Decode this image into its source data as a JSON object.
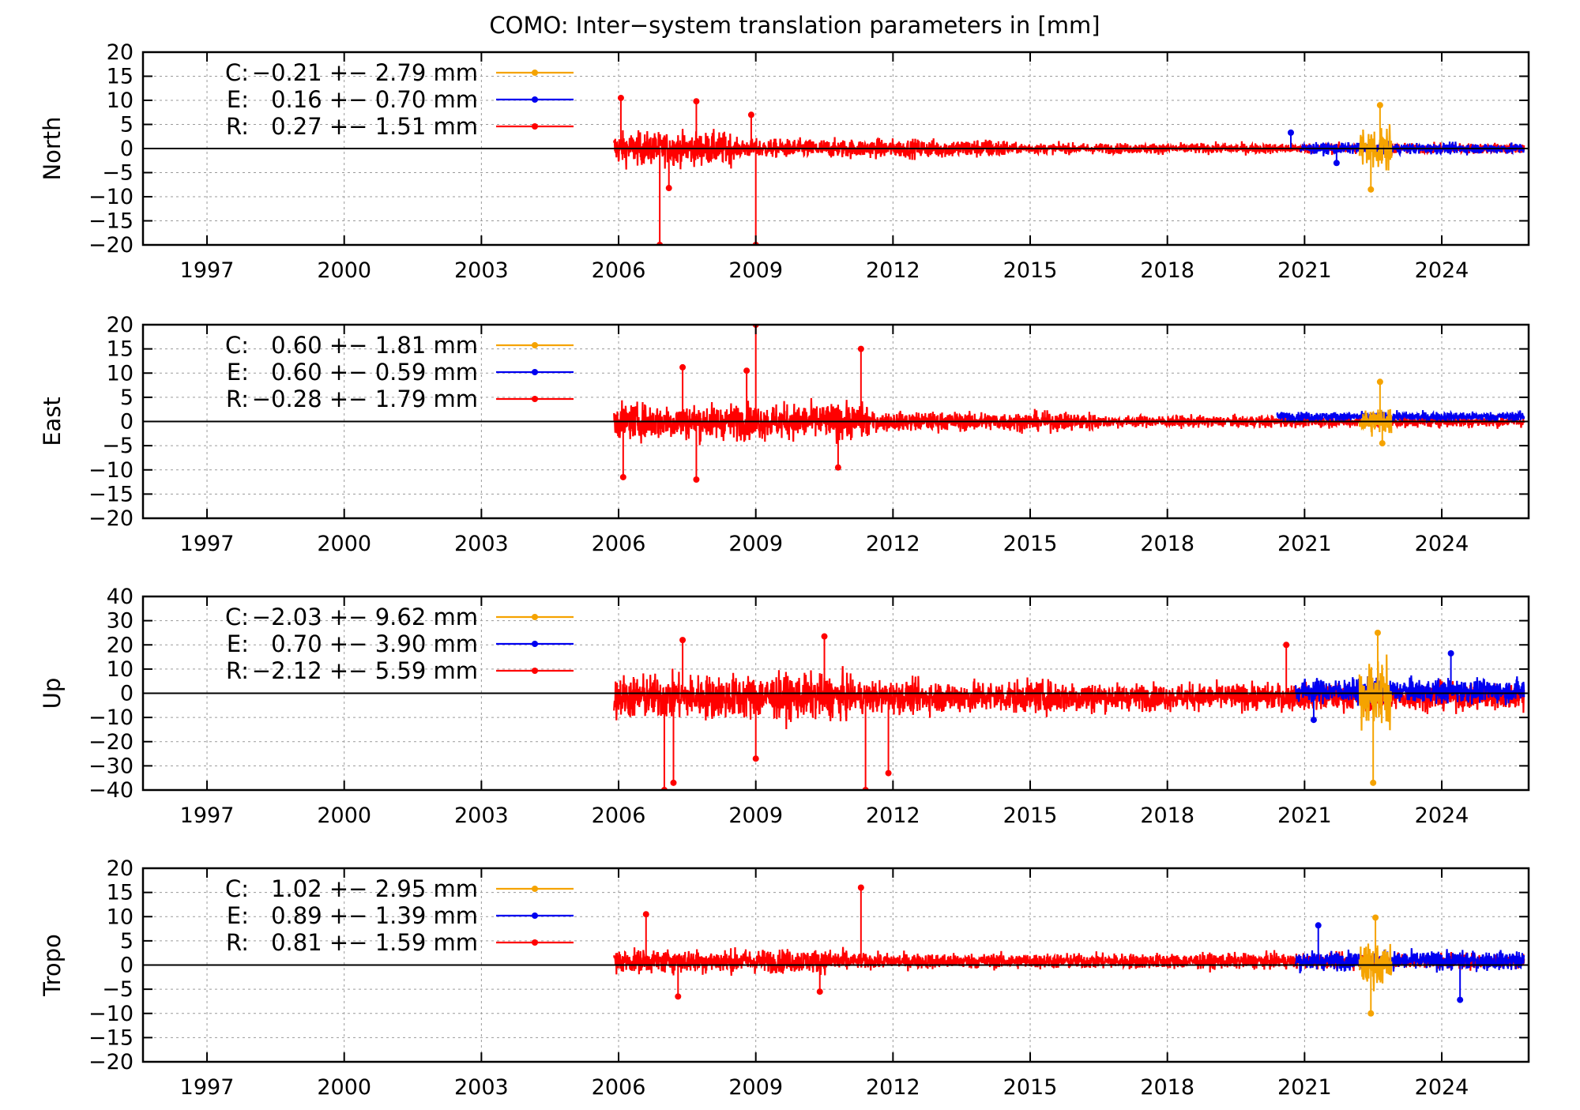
{
  "title": "COMO: Inter−system translation parameters in [mm]",
  "colors": {
    "C": "#f5a300",
    "E": "#0000f0",
    "R": "#ff0000",
    "zero_line": "#000000",
    "grid": "#9a9a9a"
  },
  "chart_data": [
    {
      "type": "line",
      "ylabel": "North",
      "ylim": [
        -20,
        20
      ],
      "yticks": [
        "20",
        "15",
        "10",
        "5",
        "0",
        "−5",
        "−10",
        "−15",
        "−20"
      ],
      "xlim": [
        1995.6,
        2025.9
      ],
      "xticks": [
        "1997",
        "2000",
        "2003",
        "2006",
        "2009",
        "2012",
        "2015",
        "2018",
        "2021",
        "2024"
      ],
      "grid": true,
      "legend_placement": "top-left",
      "legend": [
        {
          "key": "C",
          "label": "C:",
          "value": "−0.21 +− 2.79 mm"
        },
        {
          "key": "E",
          "label": "E:",
          "value": "0.16 +− 0.70 mm"
        },
        {
          "key": "R",
          "label": "R:",
          "value": "0.27 +− 1.51 mm"
        }
      ],
      "series": [
        {
          "key": "R",
          "x_range": [
            2005.9,
            2025.8
          ],
          "noise_by_period": [
            [
              2005.9,
              2008.5,
              2.8
            ],
            [
              2008.5,
              2014.5,
              1.6
            ],
            [
              2014.5,
              2025.8,
              0.9
            ]
          ],
          "spikes": [
            [
              2006.05,
              10.5
            ],
            [
              2006.9,
              -20
            ],
            [
              2007.1,
              -8.2
            ],
            [
              2007.7,
              9.8
            ],
            [
              2009.0,
              -20
            ],
            [
              2008.9,
              7.0
            ]
          ]
        },
        {
          "key": "E",
          "x_range": [
            2020.9,
            2025.8
          ],
          "noise": 0.9,
          "spikes": [
            [
              2020.7,
              3.3
            ],
            [
              2021.7,
              -3.0
            ]
          ]
        },
        {
          "key": "C",
          "x_range": [
            2022.2,
            2022.9
          ],
          "noise": 3.8,
          "spikes": [
            [
              2022.45,
              -8.5
            ],
            [
              2022.65,
              9.0
            ]
          ]
        }
      ]
    },
    {
      "type": "line",
      "ylabel": "East",
      "ylim": [
        -20,
        20
      ],
      "yticks": [
        "20",
        "15",
        "10",
        "5",
        "0",
        "−5",
        "−10",
        "−15",
        "−20"
      ],
      "xlim": [
        1995.6,
        2025.9
      ],
      "xticks": [
        "1997",
        "2000",
        "2003",
        "2006",
        "2009",
        "2012",
        "2015",
        "2018",
        "2021",
        "2024"
      ],
      "grid": true,
      "legend_placement": "top-left",
      "legend": [
        {
          "key": "C",
          "label": "C:",
          "value": "0.60 +− 1.81 mm"
        },
        {
          "key": "E",
          "label": "E:",
          "value": "0.60 +− 0.59 mm"
        },
        {
          "key": "R",
          "label": "R:",
          "value": "−0.28 +− 1.79 mm"
        }
      ],
      "series": [
        {
          "key": "R",
          "x_range": [
            2005.9,
            2025.8
          ],
          "noise_by_period": [
            [
              2005.9,
              2011.5,
              3.0
            ],
            [
              2011.5,
              2016.5,
              1.6
            ],
            [
              2016.5,
              2025.8,
              1.0
            ]
          ],
          "spikes": [
            [
              2006.1,
              -11.5
            ],
            [
              2007.4,
              11.2
            ],
            [
              2007.7,
              -12.0
            ],
            [
              2008.8,
              10.5
            ],
            [
              2009.0,
              20
            ],
            [
              2011.3,
              15.0
            ],
            [
              2010.8,
              -9.5
            ]
          ]
        },
        {
          "key": "E",
          "x_range": [
            2020.4,
            2025.8
          ],
          "noise": 0.8,
          "offset": 1.0,
          "spikes": []
        },
        {
          "key": "C",
          "x_range": [
            2022.2,
            2022.9
          ],
          "noise": 2.5,
          "spikes": [
            [
              2022.65,
              8.2
            ],
            [
              2022.7,
              -4.5
            ]
          ]
        }
      ]
    },
    {
      "type": "line",
      "ylabel": "Up",
      "ylim": [
        -40,
        40
      ],
      "yticks": [
        "40",
        "30",
        "20",
        "10",
        "0",
        "−10",
        "−20",
        "−30",
        "−40"
      ],
      "xlim": [
        1995.6,
        2025.9
      ],
      "xticks": [
        "1997",
        "2000",
        "2003",
        "2006",
        "2009",
        "2012",
        "2015",
        "2018",
        "2021",
        "2024"
      ],
      "grid": true,
      "legend_placement": "top-left",
      "legend": [
        {
          "key": "C",
          "label": "C:",
          "value": "−2.03 +− 9.62 mm"
        },
        {
          "key": "E",
          "label": "E:",
          "value": "0.70 +− 3.90 mm"
        },
        {
          "key": "R",
          "label": "R:",
          "value": "−2.12 +− 5.59 mm"
        }
      ],
      "series": [
        {
          "key": "R",
          "x_range": [
            2005.9,
            2025.8
          ],
          "offset": -1.5,
          "noise_by_period": [
            [
              2005.9,
              2011.0,
              7.5
            ],
            [
              2011.0,
              2016.5,
              5.5
            ],
            [
              2016.5,
              2025.8,
              4.5
            ]
          ],
          "spikes": [
            [
              2007.0,
              -40
            ],
            [
              2007.2,
              -37
            ],
            [
              2007.4,
              22
            ],
            [
              2009.0,
              -27
            ],
            [
              2010.5,
              23.5
            ],
            [
              2011.4,
              -40
            ],
            [
              2011.9,
              -33
            ],
            [
              2020.6,
              20
            ]
          ]
        },
        {
          "key": "E",
          "x_range": [
            2020.8,
            2025.8
          ],
          "noise": 4.0,
          "offset": 1.0,
          "spikes": [
            [
              2024.2,
              16.5
            ],
            [
              2021.2,
              -11.0
            ]
          ]
        },
        {
          "key": "C",
          "x_range": [
            2022.2,
            2022.9
          ],
          "noise": 12.0,
          "spikes": [
            [
              2022.5,
              -37
            ],
            [
              2022.6,
              25
            ]
          ]
        }
      ]
    },
    {
      "type": "line",
      "ylabel": "Tropo",
      "ylim": [
        -20,
        20
      ],
      "yticks": [
        "20",
        "15",
        "10",
        "5",
        "0",
        "−5",
        "−10",
        "−15",
        "−20"
      ],
      "xlim": [
        1995.6,
        2025.9
      ],
      "xticks": [
        "1997",
        "2000",
        "2003",
        "2006",
        "2009",
        "2012",
        "2015",
        "2018",
        "2021",
        "2024"
      ],
      "grid": true,
      "legend_placement": "top-left",
      "legend": [
        {
          "key": "C",
          "label": "C:",
          "value": "1.02 +− 2.95 mm"
        },
        {
          "key": "E",
          "label": "E:",
          "value": "0.89 +− 1.39 mm"
        },
        {
          "key": "R",
          "label": "R:",
          "value": "0.81 +− 1.59 mm"
        }
      ],
      "series": [
        {
          "key": "R",
          "x_range": [
            2005.9,
            2025.8
          ],
          "offset": 0.8,
          "noise_by_period": [
            [
              2005.9,
              2011.0,
              2.0
            ],
            [
              2011.0,
              2025.8,
              1.3
            ]
          ],
          "spikes": [
            [
              2006.6,
              10.5
            ],
            [
              2007.3,
              -6.5
            ],
            [
              2011.3,
              16.0
            ],
            [
              2010.4,
              -5.5
            ]
          ]
        },
        {
          "key": "E",
          "x_range": [
            2020.8,
            2025.8
          ],
          "noise": 1.6,
          "offset": 0.9,
          "spikes": [
            [
              2021.3,
              8.2
            ],
            [
              2024.4,
              -7.2
            ]
          ]
        },
        {
          "key": "C",
          "x_range": [
            2022.2,
            2022.9
          ],
          "noise": 3.5,
          "spikes": [
            [
              2022.45,
              -10.0
            ],
            [
              2022.55,
              9.8
            ]
          ]
        }
      ]
    }
  ]
}
